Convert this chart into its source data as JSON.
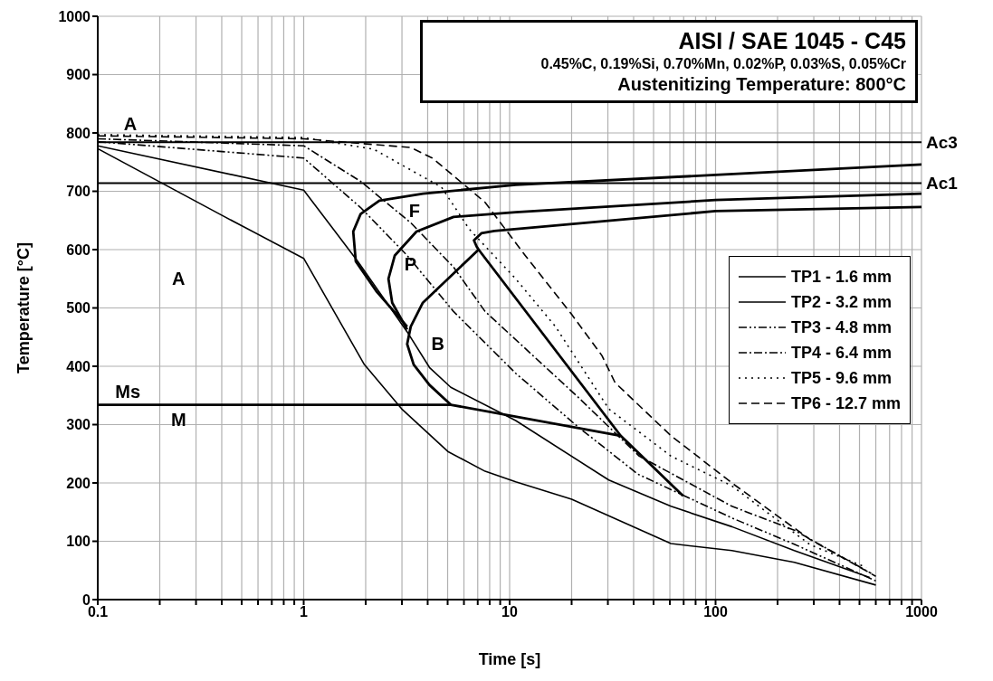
{
  "chart_data": {
    "type": "line",
    "title": "AISI / SAE 1045 - C45",
    "subtitle": "0.45%C, 0.19%Si, 0.70%Mn, 0.02%P, 0.03%S, 0.05%Cr",
    "xlabel": "Time [s]",
    "ylabel": "Temperature [°C]",
    "log": "x",
    "grid": true,
    "legend": "right",
    "xlim": [
      0.1,
      1000
    ],
    "ylim": [
      0,
      1000
    ],
    "xticks": [
      0.1,
      {
        "value": 0.2,
        "label": null
      },
      {
        "value": 0.3,
        "label": null
      },
      {
        "value": 0.4,
        "label": null
      },
      {
        "value": 0.5,
        "label": null
      },
      {
        "value": 0.6,
        "label": null
      },
      {
        "value": 0.7,
        "label": null
      },
      {
        "value": 0.8,
        "label": null
      },
      {
        "value": 0.9,
        "label": null
      },
      1,
      {
        "value": 2,
        "label": null
      },
      {
        "value": 3,
        "label": null
      },
      {
        "value": 4,
        "label": null
      },
      {
        "value": 5,
        "label": null
      },
      {
        "value": 6,
        "label": null
      },
      {
        "value": 7,
        "label": null
      },
      {
        "value": 8,
        "label": null
      },
      {
        "value": 9,
        "label": null
      },
      10,
      {
        "value": 20,
        "label": null
      },
      {
        "value": 30,
        "label": null
      },
      {
        "value": 40,
        "label": null
      },
      {
        "value": 50,
        "label": null
      },
      {
        "value": 60,
        "label": null
      },
      {
        "value": 70,
        "label": null
      },
      {
        "value": 80,
        "label": null
      },
      {
        "value": 90,
        "label": null
      },
      100,
      {
        "value": 200,
        "label": null
      },
      {
        "value": 300,
        "label": null
      },
      {
        "value": 400,
        "label": null
      },
      {
        "value": 500,
        "label": null
      },
      {
        "value": 600,
        "label": null
      },
      {
        "value": 700,
        "label": null
      },
      {
        "value": 800,
        "label": null
      },
      {
        "value": 900,
        "label": null
      },
      1000
    ],
    "yticks": [
      0,
      100,
      200,
      300,
      400,
      500,
      600,
      700,
      800,
      900,
      1000
    ],
    "ref_lines": [
      {
        "axis": "y",
        "value": 784,
        "label": "Ac3",
        "color": "#000000"
      },
      {
        "axis": "y",
        "value": 714,
        "label": "Ac1",
        "color": "#000000"
      }
    ],
    "annotations": [
      "Austenitizing Temperature: 800°C",
      "A",
      "A",
      "F",
      "P",
      "B",
      "M",
      "Ms"
    ],
    "series": [
      {
        "name": "TP1 - 1.6 mm",
        "color": "#000000",
        "line_style": "solid",
        "x": [
          0.1,
          0.39,
          1,
          1.97,
          2.99,
          5.01,
          7.6,
          10.7,
          20,
          60.7,
          120,
          241,
          600
        ],
        "values": [
          773,
          661,
          585,
          403,
          327,
          254,
          220,
          202,
          172,
          96,
          84,
          64,
          25
        ]
      },
      {
        "name": "TP2 - 3.2 mm",
        "color": "#000000",
        "line_style": "solid",
        "x": [
          0.1,
          1,
          1.83,
          3.18,
          4.08,
          5.18,
          10.7,
          30.3,
          60.7,
          120,
          241,
          560
        ],
        "values": [
          778,
          702,
          580,
          459,
          398,
          364,
          307,
          205,
          160,
          125,
          84,
          38
        ]
      },
      {
        "name": "TP3 - 4.8 mm",
        "color": "#000000",
        "line_style": "dashdotdot",
        "x": [
          0.1,
          1,
          1.89,
          3.18,
          5.34,
          10.7,
          21.5,
          42,
          120,
          241,
          600
        ],
        "values": [
          785,
          757,
          672,
          590,
          494,
          388,
          296,
          215,
          140,
          95,
          32
        ]
      },
      {
        "name": "TP4 - 6.4 mm",
        "color": "#000000",
        "line_style": "dashdot",
        "x": [
          0.1,
          1,
          1.89,
          3.31,
          5.34,
          7.6,
          21.5,
          42.6,
          120,
          241,
          570
        ],
        "values": [
          790,
          778,
          717,
          646,
          570,
          494,
          347,
          246,
          160,
          119,
          45
        ]
      },
      {
        "name": "TP5 - 9.6 mm",
        "color": "#000000",
        "line_style": "dotted",
        "x": [
          0.1,
          1,
          2.19,
          4.67,
          6.37,
          10.7,
          16.7,
          30.3,
          60.7,
          120,
          288,
          540
        ],
        "values": [
          797,
          792,
          772,
          707,
          635,
          550,
          468,
          327,
          246,
          195,
          94,
          55
        ]
      },
      {
        "name": "TP6 - 12.7 mm",
        "color": "#000000",
        "line_style": "dashed",
        "x": [
          0.1,
          1,
          3.31,
          4.21,
          7.6,
          11.9,
          20,
          28.1,
          32.5,
          60.7,
          120,
          288,
          600
        ],
        "values": [
          795,
          790,
          775,
          757,
          681,
          590,
          489,
          418,
          372,
          281,
          200,
          103,
          40
        ]
      },
      {
        "color": "#000000",
        "line_style": "solid",
        "x": [
          3.18,
          2.25,
          1.79,
          1.74,
          1.89,
          2.33,
          3.8,
          10.7,
          100,
          1000
        ],
        "values": [
          468,
          529,
          580,
          631,
          661,
          684,
          696,
          711,
          728,
          746
        ]
      },
      {
        "color": "#000000",
        "line_style": "solid",
        "x": [
          3.18,
          2.69,
          2.58,
          2.77,
          3.53,
          5.34,
          10.7,
          100,
          1000
        ],
        "values": [
          463,
          509,
          550,
          590,
          631,
          656,
          664,
          685,
          696
        ]
      },
      {
        "color": "#000000",
        "line_style": "solid",
        "x": [
          1000,
          100,
          8.43,
          7.29,
          6.71,
          6.92,
          7.07,
          3.79,
          3.31,
          3.18,
          3.42,
          4.08,
          5.18
        ],
        "values": [
          673,
          666,
          632,
          628,
          616,
          605,
          600,
          509,
          468,
          438,
          403,
          368,
          334
        ]
      },
      {
        "color": "#000000",
        "line_style": "solid",
        "x": [
          7.07,
          34.6,
          69.5
        ],
        "values": [
          600,
          281,
          178
        ]
      },
      {
        "color": "#000000",
        "line_style": "solid",
        "x": [
          0.1,
          5.18,
          34.6
        ],
        "values": [
          334,
          334,
          281
        ]
      }
    ]
  }
}
